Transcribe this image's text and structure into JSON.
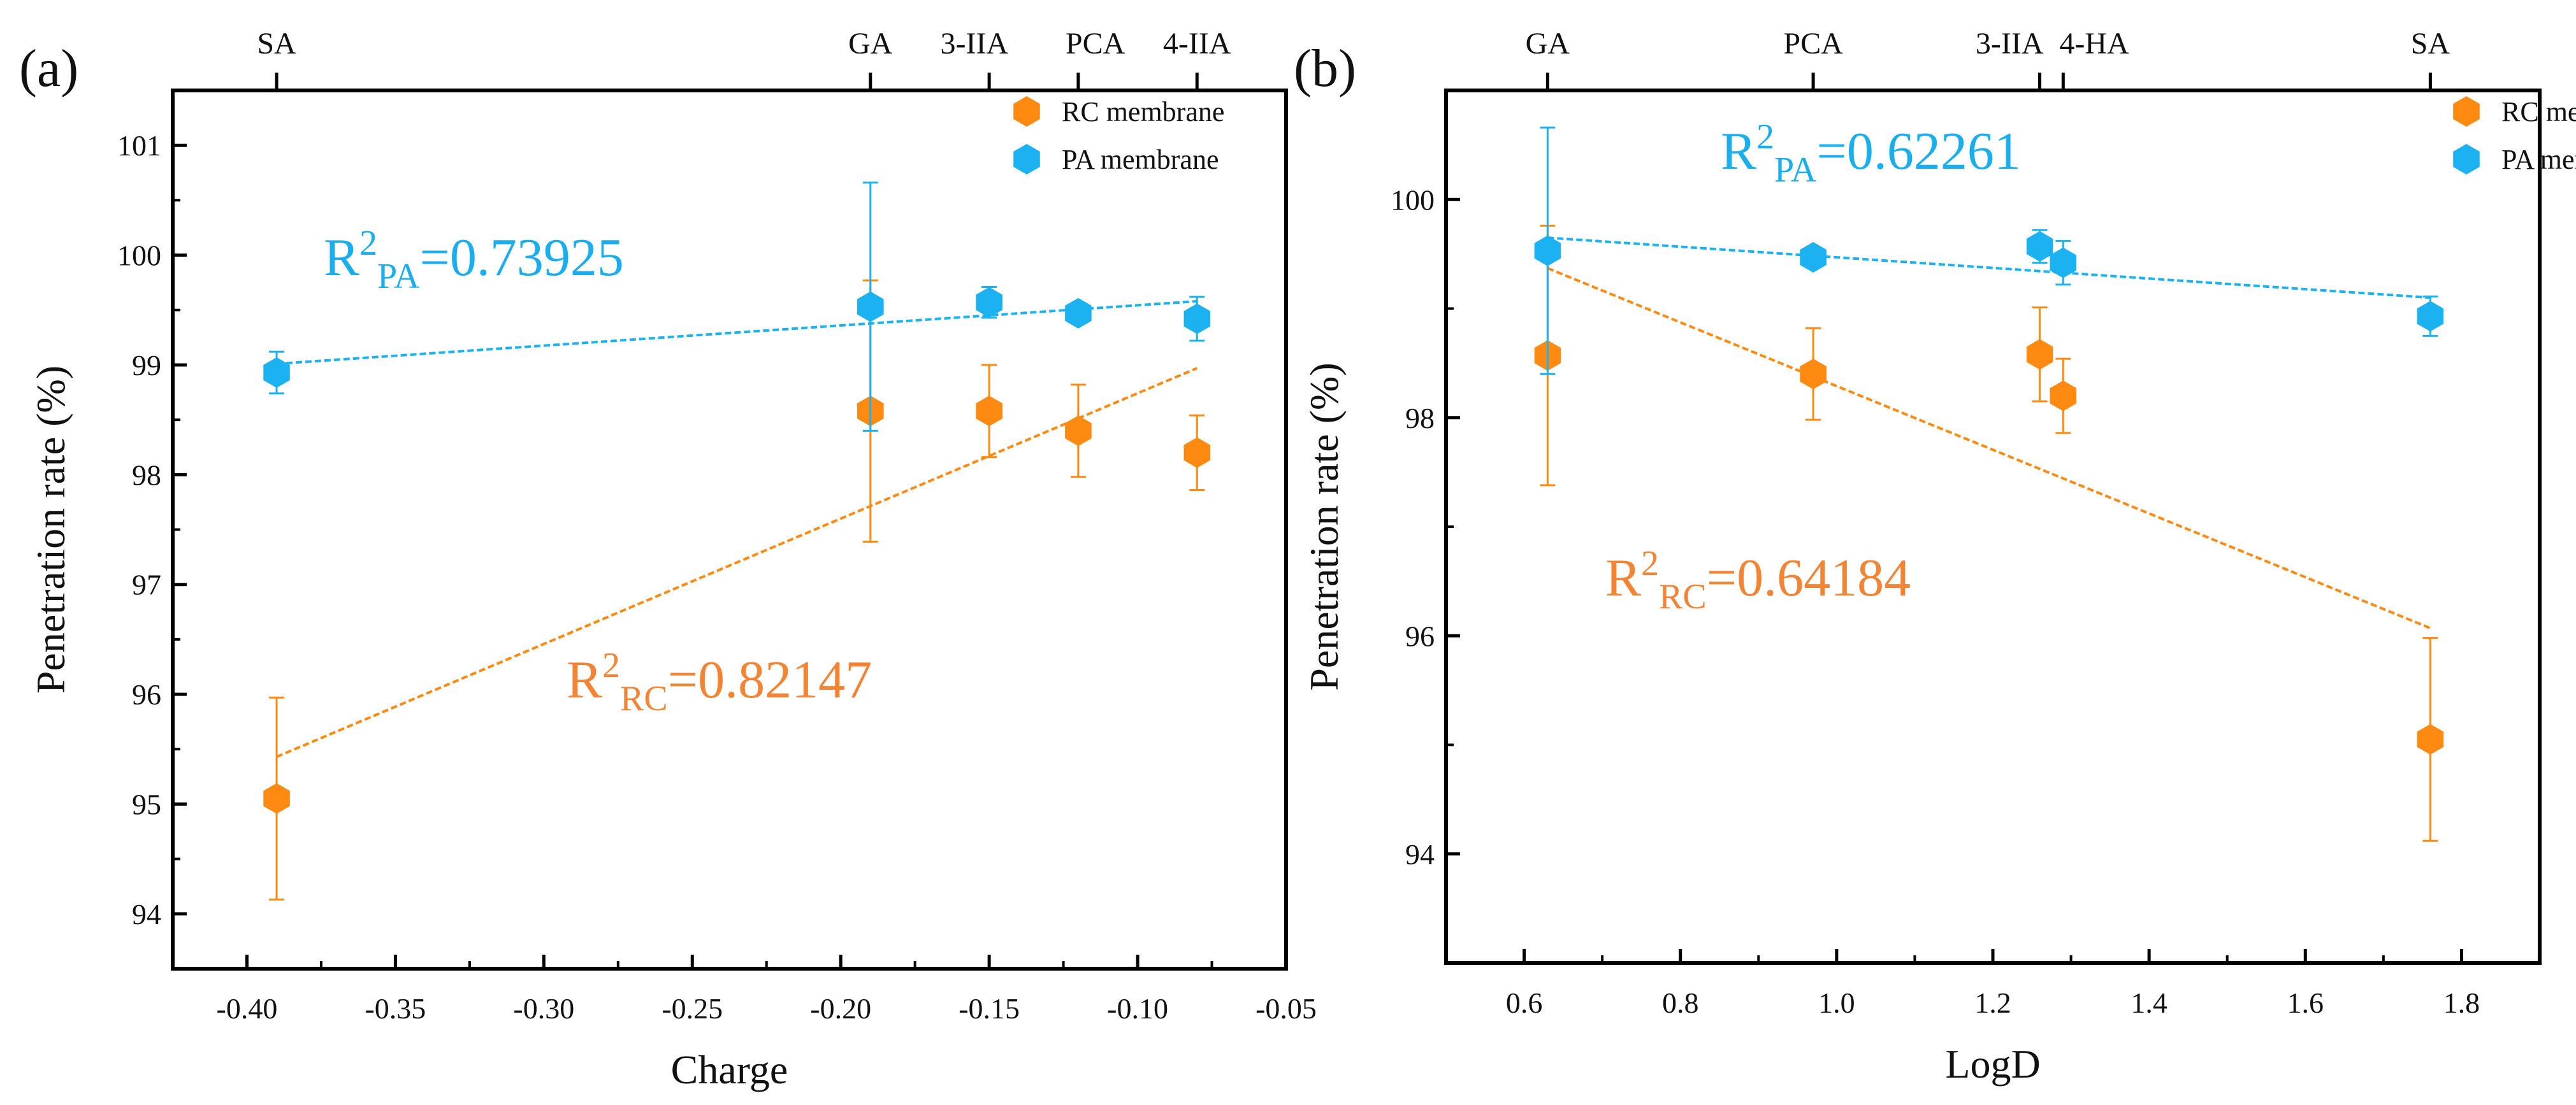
{
  "colors": {
    "rc": "#FF8A12",
    "pa": "#1CB2F2",
    "rc_text": "#F28434",
    "pa_text": "#1AAEEF",
    "axis": "#000000"
  },
  "chart_data": [
    {
      "type": "scatter",
      "panel_label": "(a)",
      "xlabel": "Charge",
      "ylabel": "Penetration rate (%)",
      "xlim": [
        -0.425,
        -0.05
      ],
      "ylim": [
        93.5,
        101.5
      ],
      "xticks": [
        -0.4,
        -0.35,
        -0.3,
        -0.25,
        -0.2,
        -0.15,
        -0.1,
        -0.05
      ],
      "xtick_labels": [
        "-0.40",
        "-0.35",
        "-0.30",
        "-0.25",
        "-0.20",
        "-0.15",
        "-0.10",
        "-0.05"
      ],
      "yticks": [
        94,
        95,
        96,
        97,
        98,
        99,
        100,
        101
      ],
      "ytick_labels": [
        "94",
        "95",
        "96",
        "97",
        "98",
        "99",
        "100",
        "101"
      ],
      "top_axis": {
        "x": [
          -0.39,
          -0.19,
          -0.15,
          -0.12,
          -0.08
        ],
        "labels": [
          "SA",
          "GA",
          "3-IIA",
          "PCA",
          "4-IIA"
        ]
      },
      "legend": {
        "placement": "top-right",
        "entries": [
          "RC membrane",
          "PA membrane"
        ]
      },
      "series": [
        {
          "name": "RC membrane",
          "color_key": "rc",
          "x": [
            -0.39,
            -0.19,
            -0.15,
            -0.12,
            -0.08
          ],
          "y": [
            95.05,
            98.58,
            98.58,
            98.4,
            98.2
          ],
          "err": [
            0.92,
            1.19,
            0.42,
            0.42,
            0.34
          ],
          "fit": {
            "x": [
              -0.39,
              -0.08
            ],
            "y": [
              95.43,
              98.97
            ]
          },
          "r2_label": {
            "base": "R",
            "sup": "2",
            "sub": "RC",
            "value": "=0.82147"
          }
        },
        {
          "name": "PA membrane",
          "color_key": "pa",
          "x": [
            -0.39,
            -0.19,
            -0.15,
            -0.12,
            -0.08
          ],
          "y": [
            98.93,
            99.53,
            99.57,
            99.47,
            99.42
          ],
          "err": [
            0.19,
            1.13,
            0.14,
            0.05,
            0.2
          ],
          "fit": {
            "x": [
              -0.39,
              -0.08
            ],
            "y": [
              99.01,
              99.58
            ]
          },
          "r2_label": {
            "base": "R",
            "sup": "2",
            "sub": "PA",
            "value": "=0.73925"
          }
        }
      ]
    },
    {
      "type": "scatter",
      "panel_label": "(b)",
      "xlabel": "LogD",
      "ylabel": "Penetration rate (%)",
      "xlim": [
        0.5,
        1.9
      ],
      "ylim": [
        93.0,
        101.0
      ],
      "xticks": [
        0.6,
        0.8,
        1.0,
        1.2,
        1.4,
        1.6,
        1.8
      ],
      "xtick_labels": [
        "0.6",
        "0.8",
        "1.0",
        "1.2",
        "1.4",
        "1.6",
        "1.8"
      ],
      "yticks": [
        94,
        96,
        98,
        100
      ],
      "ytick_labels": [
        "94",
        "96",
        "98",
        "100"
      ],
      "top_axis": {
        "x": [
          0.63,
          0.97,
          1.26,
          1.29,
          1.76
        ],
        "labels": [
          "GA",
          "PCA",
          "3-IIA",
          "4-HA",
          "SA"
        ]
      },
      "legend": {
        "placement": "top-right",
        "entries": [
          "RC membrane",
          "PA membrane"
        ]
      },
      "series": [
        {
          "name": "RC membrane",
          "color_key": "rc",
          "x": [
            0.63,
            0.97,
            1.26,
            1.29,
            1.76
          ],
          "y": [
            98.57,
            98.4,
            98.58,
            98.2,
            95.05
          ],
          "err": [
            1.19,
            0.42,
            0.43,
            0.34,
            0.93
          ],
          "fit": {
            "x": [
              0.63,
              1.76
            ],
            "y": [
              99.37,
              96.07
            ]
          },
          "r2_label": {
            "base": "R",
            "sup": "2",
            "sub": "RC",
            "value": "=0.64184"
          }
        },
        {
          "name": "PA membrane",
          "color_key": "pa",
          "x": [
            0.63,
            0.97,
            1.26,
            1.29,
            1.76
          ],
          "y": [
            99.53,
            99.47,
            99.57,
            99.42,
            98.93
          ],
          "err": [
            1.13,
            0.05,
            0.15,
            0.2,
            0.18
          ],
          "fit": {
            "x": [
              0.63,
              1.76
            ],
            "y": [
              99.65,
              99.1
            ]
          },
          "r2_label": {
            "base": "R",
            "sup": "2",
            "sub": "PA",
            "value": "=0.62261"
          }
        }
      ]
    }
  ]
}
